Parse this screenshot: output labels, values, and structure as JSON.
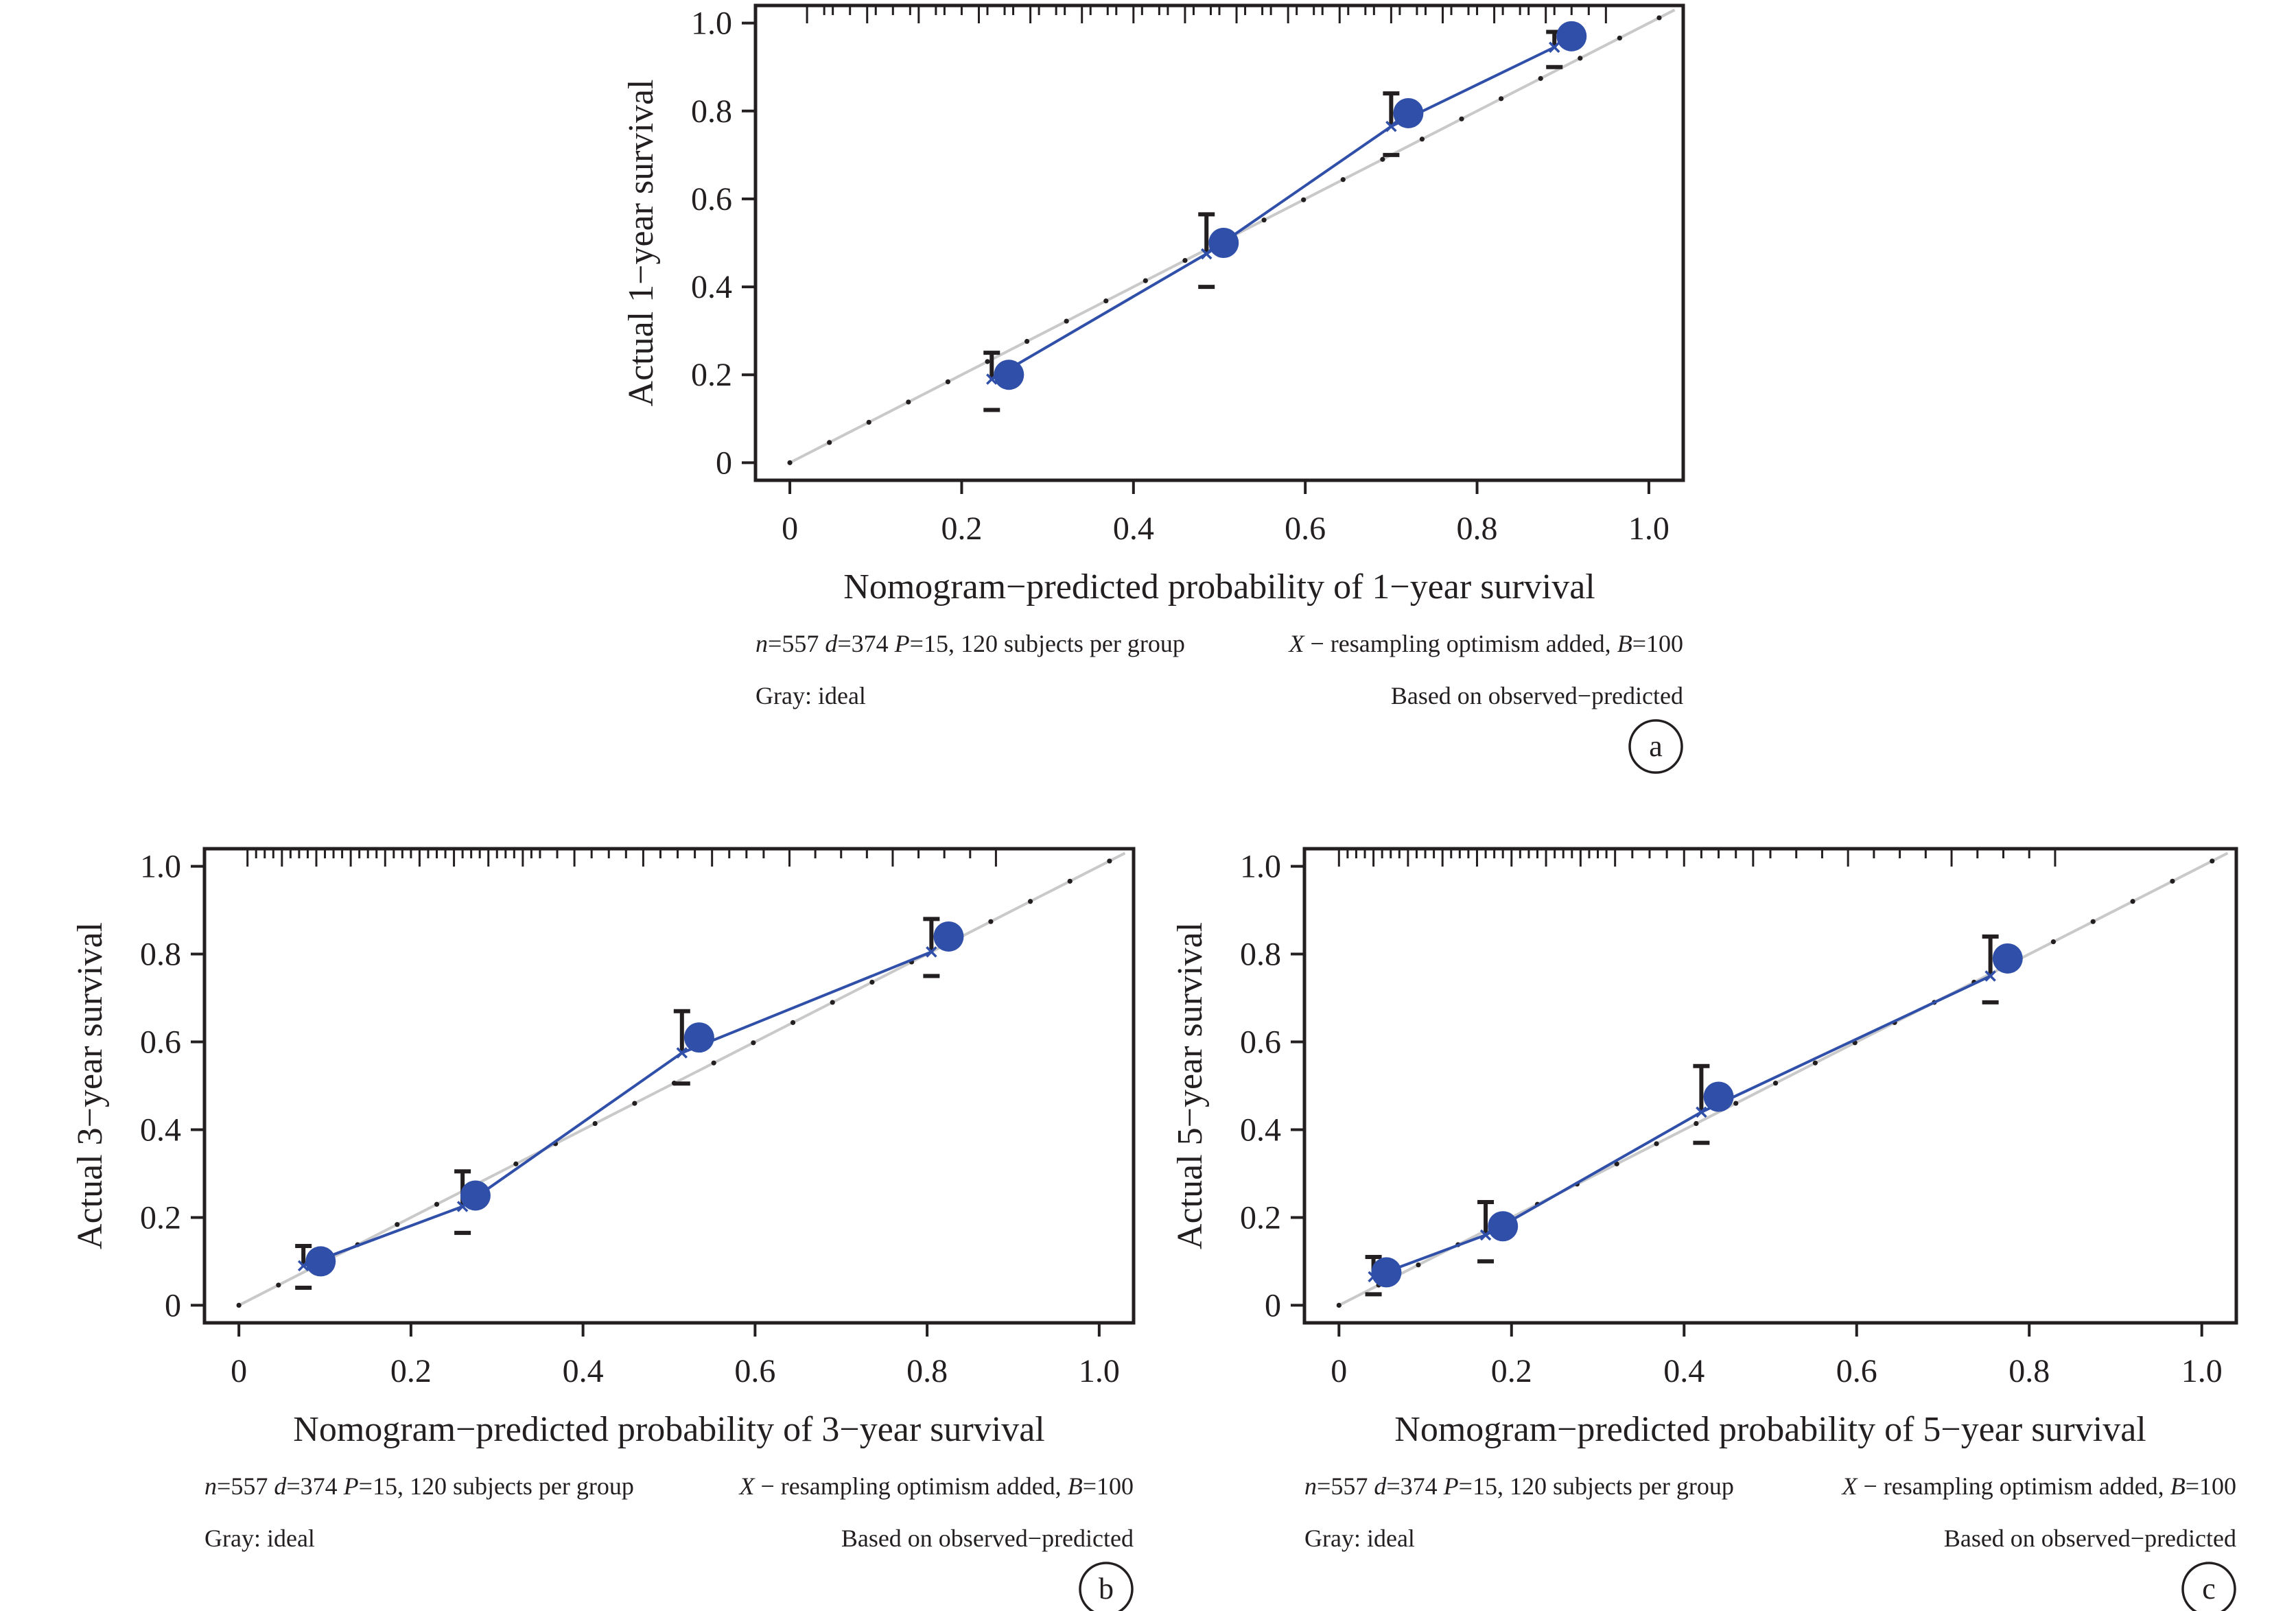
{
  "colors": {
    "series": "#2f4fa8",
    "ideal": "#c9c9c9",
    "axis": "#231f20",
    "errorbar": "#231f20"
  },
  "chart_data": [
    {
      "panel": "a",
      "type": "line",
      "xlabel": "Nomogram−predicted probability of 1−year survival",
      "ylabel": "Actual 1−year survival",
      "xlim": [
        -0.04,
        1.04
      ],
      "ylim": [
        -0.04,
        1.04
      ],
      "xticks": [
        "0",
        "0.2",
        "0.4",
        "0.6",
        "0.8",
        "1.0"
      ],
      "yticks": [
        "0",
        "0.2",
        "0.4",
        "0.6",
        "0.8",
        "1.0"
      ],
      "note_left": "n=557 d=374 P=15, 120 subjects per group",
      "note_right": "X − resampling optimism added, B=100",
      "note_left2": "Gray: ideal",
      "note_right2": "Based on observed−predicted",
      "series": {
        "x": [
          0.255,
          0.505,
          0.72,
          0.91
        ],
        "y": [
          0.2,
          0.5,
          0.795,
          0.97
        ],
        "corrected_x": [
          0.235,
          0.485,
          0.7,
          0.89
        ],
        "corrected_y": [
          0.19,
          0.475,
          0.765,
          0.945
        ],
        "ci_lower": [
          0.12,
          0.4,
          0.7,
          0.9
        ],
        "ci_upper": [
          0.25,
          0.565,
          0.84,
          0.98
        ]
      },
      "ideal": [
        [
          0,
          0
        ],
        [
          1.03,
          1.03
        ]
      ],
      "rug_x": [
        0.02,
        0.04,
        0.05,
        0.07,
        0.09,
        0.1,
        0.12,
        0.14,
        0.15,
        0.17,
        0.18,
        0.2,
        0.22,
        0.23,
        0.25,
        0.26,
        0.28,
        0.29,
        0.31,
        0.32,
        0.34,
        0.35,
        0.37,
        0.38,
        0.4,
        0.41,
        0.43,
        0.44,
        0.46,
        0.47,
        0.49,
        0.5,
        0.52,
        0.53,
        0.55,
        0.56,
        0.58,
        0.59,
        0.61,
        0.62,
        0.64,
        0.65,
        0.67,
        0.68,
        0.7,
        0.71,
        0.73,
        0.74,
        0.76,
        0.77,
        0.79,
        0.8,
        0.82,
        0.83,
        0.85,
        0.86,
        0.88,
        0.89,
        0.91,
        0.93,
        0.95
      ]
    },
    {
      "panel": "b",
      "type": "line",
      "xlabel": "Nomogram−predicted probability of 3−year survival",
      "ylabel": "Actual 3−year survival",
      "xlim": [
        -0.04,
        1.04
      ],
      "ylim": [
        -0.04,
        1.04
      ],
      "xticks": [
        "0",
        "0.2",
        "0.4",
        "0.6",
        "0.8",
        "1.0"
      ],
      "yticks": [
        "0",
        "0.2",
        "0.4",
        "0.6",
        "0.8",
        "1.0"
      ],
      "note_left": "n=557 d=374 P=15, 120 subjects per group",
      "note_right": "X − resampling optimism added, B=100",
      "note_left2": "Gray: ideal",
      "note_right2": "Based on observed−predicted",
      "series": {
        "x": [
          0.095,
          0.275,
          0.535,
          0.825
        ],
        "y": [
          0.1,
          0.25,
          0.61,
          0.84
        ],
        "corrected_x": [
          0.075,
          0.26,
          0.515,
          0.805
        ],
        "corrected_y": [
          0.09,
          0.225,
          0.575,
          0.805
        ],
        "ci_lower": [
          0.04,
          0.165,
          0.505,
          0.75
        ],
        "ci_upper": [
          0.135,
          0.305,
          0.67,
          0.88
        ]
      },
      "ideal": [
        [
          0,
          0
        ],
        [
          1.03,
          1.03
        ]
      ],
      "rug_x": [
        0.01,
        0.02,
        0.03,
        0.04,
        0.05,
        0.06,
        0.07,
        0.08,
        0.09,
        0.1,
        0.11,
        0.12,
        0.13,
        0.14,
        0.15,
        0.16,
        0.17,
        0.18,
        0.19,
        0.2,
        0.21,
        0.22,
        0.23,
        0.24,
        0.25,
        0.26,
        0.27,
        0.28,
        0.29,
        0.3,
        0.31,
        0.32,
        0.33,
        0.34,
        0.35,
        0.37,
        0.39,
        0.41,
        0.43,
        0.45,
        0.47,
        0.49,
        0.51,
        0.53,
        0.55,
        0.57,
        0.59,
        0.61,
        0.64,
        0.67,
        0.7,
        0.73,
        0.76,
        0.79,
        0.82,
        0.85,
        0.88
      ]
    },
    {
      "panel": "c",
      "type": "line",
      "xlabel": "Nomogram−predicted probability of 5−year survival",
      "ylabel": "Actual 5−year survival",
      "xlim": [
        -0.04,
        1.04
      ],
      "ylim": [
        -0.04,
        1.04
      ],
      "xticks": [
        "0",
        "0.2",
        "0.4",
        "0.6",
        "0.8",
        "1.0"
      ],
      "yticks": [
        "0",
        "0.2",
        "0.4",
        "0.6",
        "0.8",
        "1.0"
      ],
      "note_left": "n=557 d=374 P=15, 120 subjects per group",
      "note_right": "X − resampling optimism added, B=100",
      "note_left2": "Gray: ideal",
      "note_right2": "Based on observed−predicted",
      "series": {
        "x": [
          0.055,
          0.19,
          0.44,
          0.775
        ],
        "y": [
          0.075,
          0.18,
          0.475,
          0.79
        ],
        "corrected_x": [
          0.04,
          0.17,
          0.42,
          0.755
        ],
        "corrected_y": [
          0.065,
          0.16,
          0.44,
          0.75
        ],
        "ci_lower": [
          0.025,
          0.1,
          0.37,
          0.69
        ],
        "ci_upper": [
          0.11,
          0.235,
          0.545,
          0.84
        ]
      },
      "ideal": [
        [
          0,
          0
        ],
        [
          1.03,
          1.03
        ]
      ],
      "rug_x": [
        0.0,
        0.01,
        0.02,
        0.03,
        0.04,
        0.05,
        0.06,
        0.07,
        0.08,
        0.09,
        0.1,
        0.11,
        0.12,
        0.13,
        0.14,
        0.15,
        0.16,
        0.17,
        0.18,
        0.19,
        0.2,
        0.21,
        0.22,
        0.23,
        0.24,
        0.25,
        0.26,
        0.27,
        0.28,
        0.29,
        0.3,
        0.31,
        0.32,
        0.34,
        0.36,
        0.38,
        0.4,
        0.42,
        0.44,
        0.46,
        0.48,
        0.5,
        0.53,
        0.56,
        0.59,
        0.62,
        0.65,
        0.68,
        0.71,
        0.74,
        0.77,
        0.8,
        0.83
      ]
    }
  ]
}
